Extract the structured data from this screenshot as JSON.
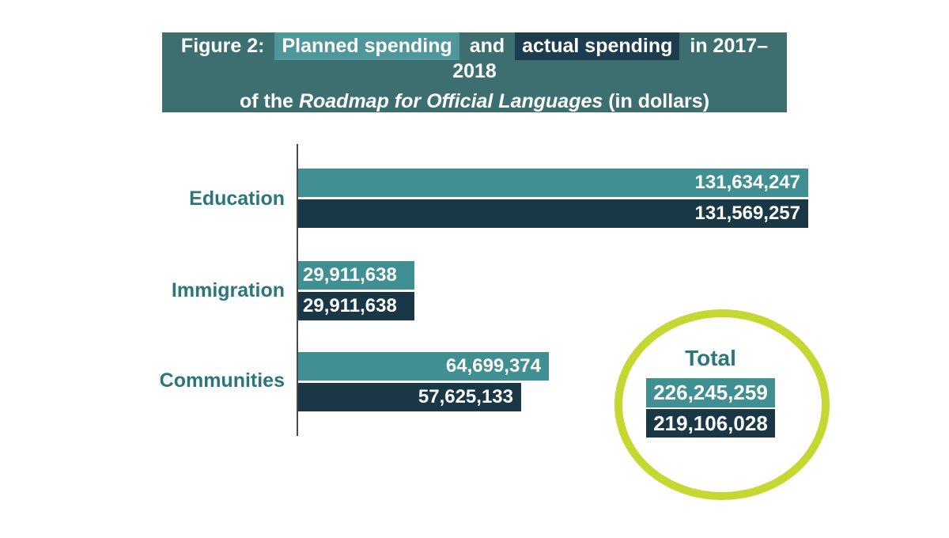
{
  "figure": {
    "title_prefix": "Figure 2:",
    "planned_highlight": "Planned spending",
    "and_text": "and",
    "actual_highlight": "actual spending",
    "title_suffix": "in 2017–2018",
    "line2_prefix": "of the",
    "line2_italic": "Roadmap for Official Languages",
    "line2_suffix": "(in dollars)"
  },
  "chart_data": {
    "type": "bar",
    "orientation": "horizontal",
    "title": "Figure 2: Planned spending and actual spending in 2017–2018 of the Roadmap for Official Languages (in dollars)",
    "categories": [
      "Education",
      "Immigration",
      "Communities"
    ],
    "series": [
      {
        "name": "Planned spending",
        "color": "#408f93",
        "values": [
          131634247,
          29911638,
          64699374
        ],
        "display": [
          "131,634,247",
          "29,911,638",
          "64,699,374"
        ]
      },
      {
        "name": "Actual spending",
        "color": "#1a3746",
        "values": [
          131569257,
          29911638,
          57625133
        ],
        "display": [
          "131,569,257",
          "29,911,638",
          "57,625,133"
        ]
      }
    ],
    "xlim": [
      0,
      131634247
    ],
    "grid": false,
    "legend": "highlighted words in title",
    "value_labels": "inside bar end",
    "totals": {
      "label": "Total",
      "planned": 226245259,
      "actual": 219106028,
      "planned_display": "226,245,259",
      "actual_display": "219,106,028"
    }
  },
  "colors": {
    "background": "#ffffff",
    "banner_bg": "#3e6f70",
    "planned_highlight_bg": "#4f979b",
    "actual_highlight_bg": "#1d3c4e",
    "planned_bar": "#408f93",
    "actual_bar": "#1a3746",
    "category_label": "#2a767c",
    "total_circle": "#c5d832",
    "axis_line": "#4a4a4a",
    "value_text": "#ffffff"
  }
}
